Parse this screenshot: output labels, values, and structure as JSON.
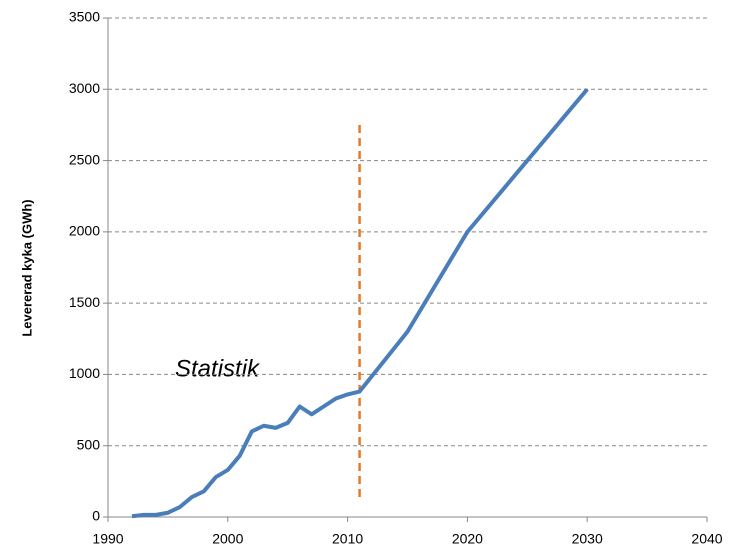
{
  "chart_data": {
    "type": "line",
    "y_label": "Levererad kyka (GWh)",
    "annotation": "Statistik",
    "x": [
      1992,
      1993,
      1994,
      1995,
      1996,
      1997,
      1998,
      1999,
      2000,
      2001,
      2002,
      2003,
      2004,
      2005,
      2006,
      2007,
      2008,
      2009,
      2010,
      2011,
      2015,
      2020,
      2025,
      2030
    ],
    "series": [
      {
        "color": "#4a7ebb",
        "values": [
          5,
          15,
          15,
          30,
          70,
          140,
          180,
          280,
          330,
          430,
          600,
          640,
          625,
          660,
          775,
          720,
          775,
          830,
          860,
          880,
          1300,
          2000,
          2500,
          3000
        ]
      }
    ],
    "vline": {
      "x": 2011,
      "y": [
        140,
        2750
      ],
      "color": "#e07b28"
    },
    "xlim": [
      1990,
      2040
    ],
    "xticks": [
      1990,
      2000,
      2010,
      2020,
      2030,
      2040
    ],
    "ylim": [
      0,
      3500
    ],
    "yticks": [
      0,
      500,
      1000,
      1500,
      2000,
      2500,
      3000,
      3500
    ],
    "grid": true
  }
}
